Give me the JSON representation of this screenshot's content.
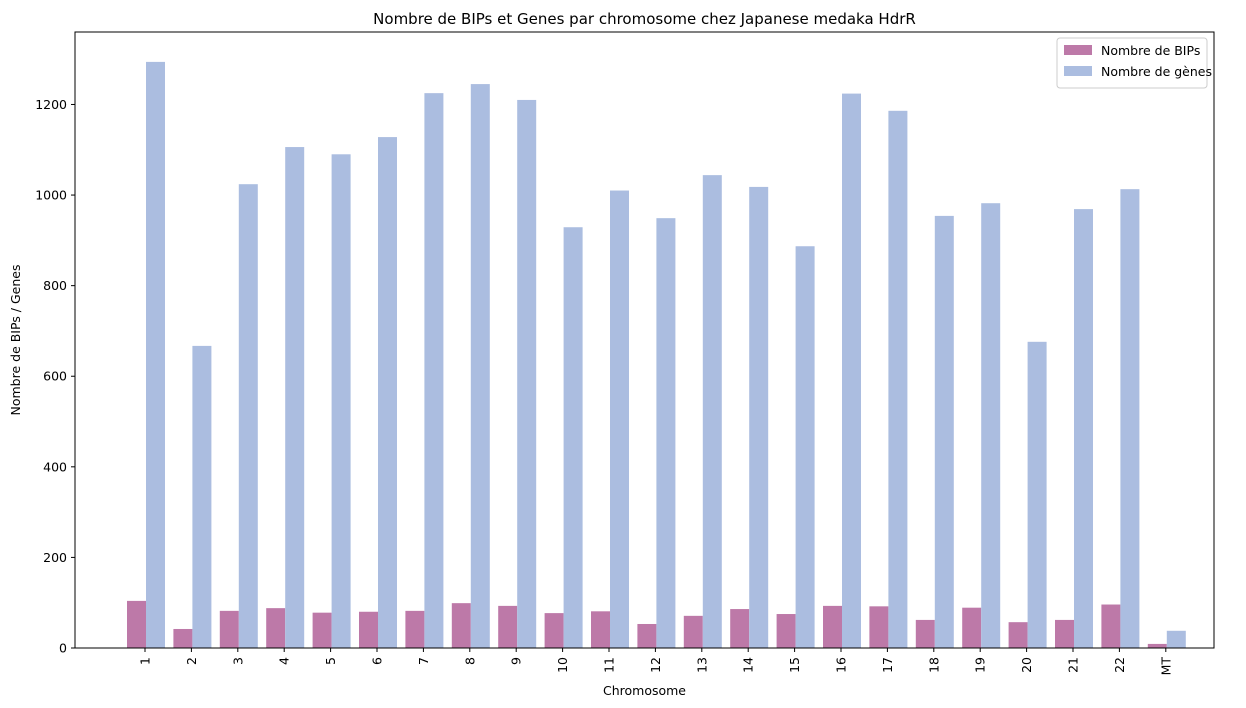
{
  "chart_data": {
    "type": "bar",
    "title": "Nombre de BIPs et Genes par chromosome chez Japanese medaka HdrR",
    "xlabel": "Chromosome",
    "ylabel": "Nombre de BIPs / Genes",
    "ylim": [
      0,
      1360
    ],
    "yticks": [
      0,
      200,
      400,
      600,
      800,
      1000,
      1200
    ],
    "grid": false,
    "legend_position": "top-right",
    "categories": [
      "1",
      "2",
      "3",
      "4",
      "5",
      "6",
      "7",
      "8",
      "9",
      "10",
      "11",
      "12",
      "13",
      "14",
      "15",
      "16",
      "17",
      "18",
      "19",
      "20",
      "21",
      "22",
      "MT"
    ],
    "series": [
      {
        "name": "Nombre de BIPs",
        "color": "#bd79a8",
        "values": [
          104,
          42,
          82,
          88,
          78,
          80,
          82,
          99,
          93,
          77,
          81,
          53,
          71,
          86,
          75,
          93,
          92,
          62,
          89,
          57,
          62,
          96,
          9
        ]
      },
      {
        "name": "Nombre de gènes",
        "color": "#abbde0",
        "values": [
          1294,
          667,
          1024,
          1106,
          1090,
          1128,
          1225,
          1245,
          1210,
          929,
          1010,
          949,
          1044,
          1018,
          887,
          1224,
          1186,
          954,
          982,
          676,
          969,
          1013,
          38
        ]
      }
    ]
  }
}
